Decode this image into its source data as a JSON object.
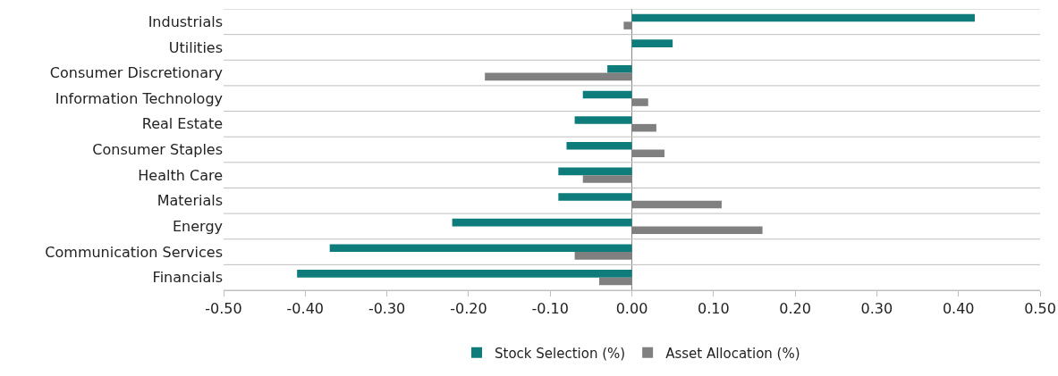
{
  "chart_data": {
    "type": "bar",
    "orientation": "horizontal",
    "categories": [
      "Industrials",
      "Utilities",
      "Consumer Discretionary",
      "Information Technology",
      "Real Estate",
      "Consumer Staples",
      "Health Care",
      "Materials",
      "Energy",
      "Communication Services",
      "Financials"
    ],
    "series": [
      {
        "name": "Stock Selection (%)",
        "color": "#0e7c7b",
        "values": [
          0.42,
          0.05,
          -0.03,
          -0.06,
          -0.07,
          -0.08,
          -0.09,
          -0.09,
          -0.22,
          -0.37,
          -0.41
        ]
      },
      {
        "name": "Asset Allocation (%)",
        "color": "#808080",
        "values": [
          -0.01,
          0.0,
          -0.18,
          0.02,
          0.03,
          0.04,
          -0.06,
          0.11,
          0.16,
          -0.07,
          -0.04
        ]
      }
    ],
    "xlim": [
      -0.5,
      0.5
    ],
    "xticks": [
      {
        "value": -0.5,
        "label": "-0.50"
      },
      {
        "value": -0.4,
        "label": "-0.40"
      },
      {
        "value": -0.3,
        "label": "-0.30"
      },
      {
        "value": -0.2,
        "label": "-0.20"
      },
      {
        "value": -0.1,
        "label": "-0.10"
      },
      {
        "value": 0,
        "label": "0.00"
      },
      {
        "value": 0.1,
        "label": "0.10"
      },
      {
        "value": 0.2,
        "label": "0.20"
      },
      {
        "value": 0.3,
        "label": "0.30"
      },
      {
        "value": 0.4,
        "label": "0.40"
      },
      {
        "value": 0.5,
        "label": "0.50"
      }
    ],
    "grid": "y",
    "legend": "bottom"
  }
}
